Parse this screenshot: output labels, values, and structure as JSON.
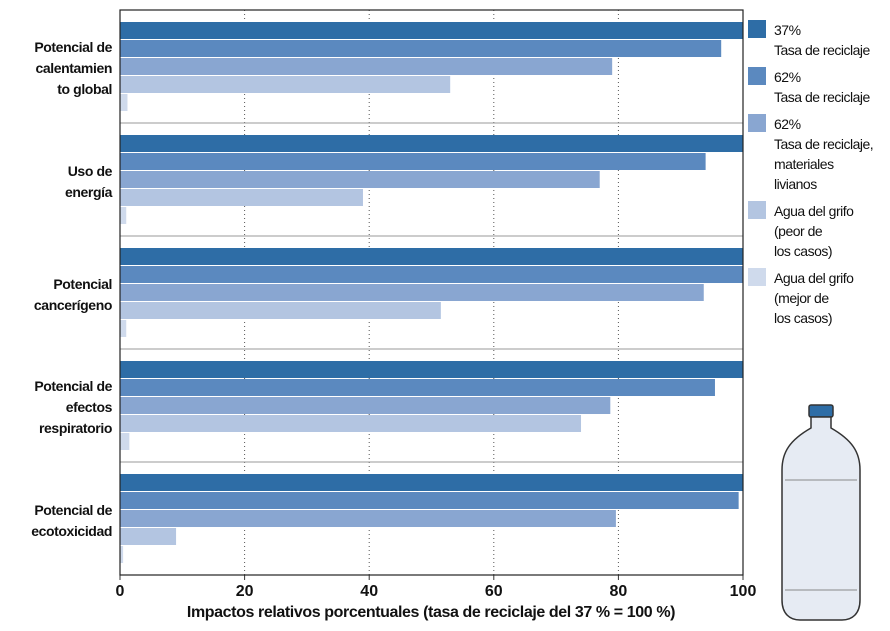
{
  "chart_data": {
    "type": "hbar",
    "x_label": "Impactos relativos porcentuales (tasa de reciclaje del 37 % = 100 %)",
    "categories": [
      "Potencial de\ncalentamien\nto global",
      "Uso de\nenergía",
      "Potencial\ncancerígeno",
      "Potencial de\nefectos\nrespiratorio",
      "Potencial de\necotoxicidad"
    ],
    "series": [
      {
        "name": "37%\nTasa de reciclaje",
        "color": "#2e6da6",
        "values": [
          100,
          100,
          100,
          100,
          100
        ]
      },
      {
        "name": "62%\nTasa de reciclaje",
        "color": "#5b89bf",
        "values": [
          96.5,
          94,
          100,
          95.5,
          99.3
        ]
      },
      {
        "name": "62%\nTasa de reciclaje,\nmateriales\nlivianos",
        "color": "#89a6d1",
        "values": [
          79,
          77,
          93.7,
          78.7,
          79.6
        ]
      },
      {
        "name": "Agua del grifo\n(peor de\nlos casos)",
        "color": "#b3c5e1",
        "values": [
          53,
          39,
          51.5,
          74,
          9
        ]
      },
      {
        "name": "Agua del grifo\n(mejor de\nlos casos)",
        "color": "#cfdaec",
        "values": [
          1.2,
          1,
          1,
          1.5,
          0.5
        ]
      }
    ],
    "xlim": [
      0,
      100
    ],
    "xticks": [
      0,
      20,
      40,
      60,
      80,
      100
    ],
    "grid": true
  }
}
